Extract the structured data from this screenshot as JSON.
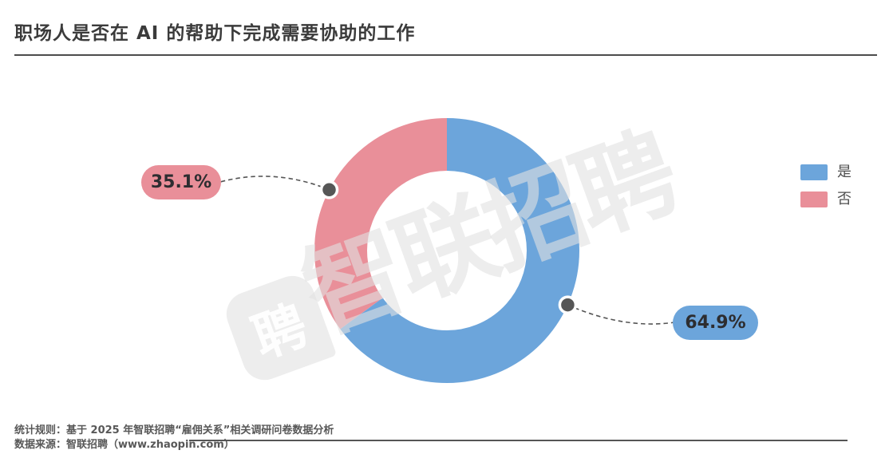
{
  "header": {
    "title": "职场人是否在 AI 的帮助下完成需要协助的工作"
  },
  "chart_data": {
    "type": "pie",
    "subtype": "donut",
    "title": "职场人是否在 AI 的帮助下完成需要协助的工作",
    "categories": [
      "是",
      "否"
    ],
    "values": [
      64.9,
      35.1
    ],
    "slices": [
      {
        "label": "是",
        "value": 64.9,
        "display_value": "64.9%",
        "color": "#6CA5DB"
      },
      {
        "label": "否",
        "value": 35.1,
        "display_value": "35.1%",
        "color": "#E98F99"
      }
    ],
    "start_angle": "top",
    "direction": "clockwise",
    "inner_radius_ratio": 0.6,
    "legend_position": "right",
    "anchor_dot_color": "#565656",
    "leader_line_color": "#555555"
  },
  "watermark": {
    "text": "智联招聘",
    "logo_glyph": "聘"
  },
  "footer": {
    "line1": "统计规则：基于 2025 年智联招聘“雇佣关系”相关调研问卷数据分析",
    "line2": "数据来源：智联招聘（www.zhaopin.com）"
  }
}
